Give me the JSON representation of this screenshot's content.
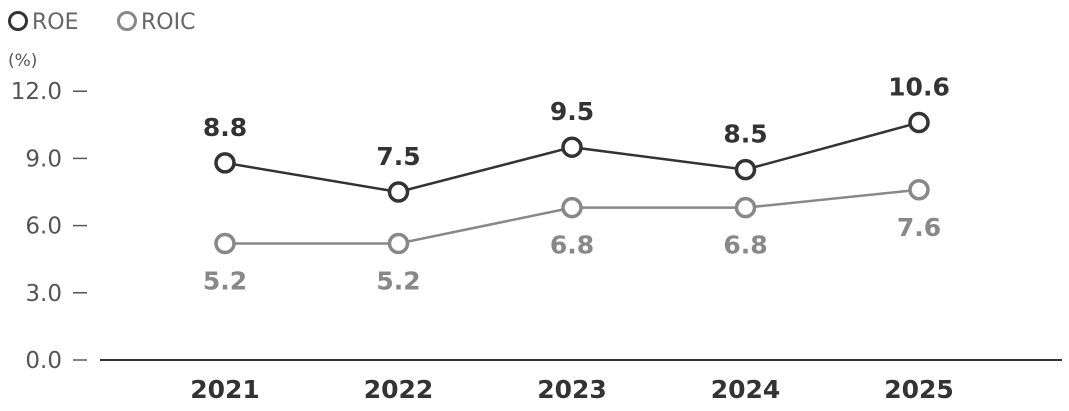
{
  "chart_data": {
    "type": "line",
    "categories": [
      "2021",
      "2022",
      "2023",
      "2024",
      "2025"
    ],
    "unit_label": "(%)",
    "ylim": [
      0,
      12
    ],
    "yticks": [
      0,
      3,
      6,
      9,
      12
    ],
    "ytick_labels": [
      "0.0",
      "3.0",
      "6.0",
      "9.0",
      "12.0"
    ],
    "legend_position": "top-left",
    "grid": false,
    "series": [
      {
        "name": "ROE",
        "values": [
          8.8,
          7.5,
          9.5,
          8.5,
          10.6
        ],
        "labels": [
          "8.8",
          "7.5",
          "9.5",
          "8.5",
          "10.6"
        ],
        "label_position": "above",
        "color": "#333333"
      },
      {
        "name": "ROIC",
        "values": [
          5.2,
          5.2,
          6.8,
          6.8,
          7.6
        ],
        "labels": [
          "5.2",
          "5.2",
          "6.8",
          "6.8",
          "7.6"
        ],
        "label_position": "below",
        "color": "#888888"
      }
    ]
  }
}
